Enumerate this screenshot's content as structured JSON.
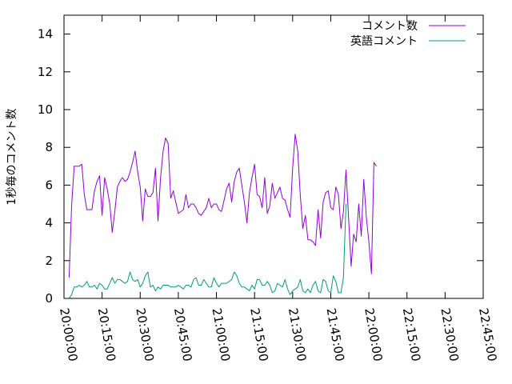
{
  "chart_data": {
    "type": "line",
    "title": "",
    "xlabel": "",
    "ylabel": "1秒毎のコメント数",
    "ylim": [
      0,
      15
    ],
    "yticks": [
      0,
      2,
      4,
      6,
      8,
      10,
      12,
      14
    ],
    "xlim": [
      "20:00:00",
      "22:45:00"
    ],
    "xticks": [
      "20:00:00",
      "20:15:00",
      "20:30:00",
      "20:45:00",
      "21:00:00",
      "21:15:00",
      "21:30:00",
      "21:45:00",
      "22:00:00",
      "22:15:00",
      "22:30:00",
      "22:45:00"
    ],
    "legend_position": "top-right",
    "grid": false,
    "series": [
      {
        "name": "コメント数",
        "color": "#9400d3",
        "points": [
          [
            "20:02:00",
            1.1
          ],
          [
            "20:03:00",
            4.9
          ],
          [
            "20:04:00",
            7.0
          ],
          [
            "20:05:00",
            7.0
          ],
          [
            "20:06:00",
            7.0
          ],
          [
            "20:07:00",
            7.1
          ],
          [
            "20:08:00",
            5.5
          ],
          [
            "20:09:00",
            4.7
          ],
          [
            "20:10:00",
            4.7
          ],
          [
            "20:11:00",
            4.7
          ],
          [
            "20:12:00",
            5.7
          ],
          [
            "20:13:00",
            6.2
          ],
          [
            "20:14:00",
            6.5
          ],
          [
            "20:15:00",
            4.4
          ],
          [
            "20:16:00",
            6.4
          ],
          [
            "20:17:00",
            5.8
          ],
          [
            "20:18:00",
            5.0
          ],
          [
            "20:19:00",
            3.5
          ],
          [
            "20:20:00",
            4.6
          ],
          [
            "20:21:00",
            5.9
          ],
          [
            "20:22:00",
            6.2
          ],
          [
            "20:23:00",
            6.4
          ],
          [
            "20:24:00",
            6.2
          ],
          [
            "20:25:00",
            6.3
          ],
          [
            "20:26:00",
            6.7
          ],
          [
            "20:27:00",
            7.2
          ],
          [
            "20:28:00",
            7.8
          ],
          [
            "20:29:00",
            6.7
          ],
          [
            "20:30:00",
            5.9
          ],
          [
            "20:31:00",
            4.1
          ],
          [
            "20:32:00",
            5.8
          ],
          [
            "20:33:00",
            5.4
          ],
          [
            "20:34:00",
            5.4
          ],
          [
            "20:35:00",
            5.6
          ],
          [
            "20:36:00",
            6.9
          ],
          [
            "20:37:00",
            4.1
          ],
          [
            "20:38:00",
            6.4
          ],
          [
            "20:39:00",
            7.8
          ],
          [
            "20:40:00",
            8.5
          ],
          [
            "20:41:00",
            8.2
          ],
          [
            "20:42:00",
            5.3
          ],
          [
            "20:43:00",
            5.7
          ],
          [
            "20:44:00",
            5.1
          ],
          [
            "20:45:00",
            4.5
          ],
          [
            "20:46:00",
            4.6
          ],
          [
            "20:47:00",
            4.7
          ],
          [
            "20:48:00",
            5.5
          ],
          [
            "20:49:00",
            4.8
          ],
          [
            "20:50:00",
            5.0
          ],
          [
            "20:51:00",
            5.0
          ],
          [
            "20:52:00",
            4.8
          ],
          [
            "20:53:00",
            4.5
          ],
          [
            "20:54:00",
            4.4
          ],
          [
            "20:55:00",
            4.6
          ],
          [
            "20:56:00",
            4.8
          ],
          [
            "20:57:00",
            5.3
          ],
          [
            "20:58:00",
            4.8
          ],
          [
            "20:59:00",
            5.0
          ],
          [
            "21:00:00",
            5.0
          ],
          [
            "21:01:00",
            4.7
          ],
          [
            "21:02:00",
            4.6
          ],
          [
            "21:03:00",
            5.2
          ],
          [
            "21:04:00",
            5.8
          ],
          [
            "21:05:00",
            6.1
          ],
          [
            "21:06:00",
            5.1
          ],
          [
            "21:07:00",
            6.2
          ],
          [
            "21:08:00",
            6.7
          ],
          [
            "21:09:00",
            6.9
          ],
          [
            "21:10:00",
            6.0
          ],
          [
            "21:11:00",
            5.1
          ],
          [
            "21:12:00",
            4.0
          ],
          [
            "21:13:00",
            5.6
          ],
          [
            "21:14:00",
            6.4
          ],
          [
            "21:15:00",
            7.1
          ],
          [
            "21:16:00",
            5.5
          ],
          [
            "21:17:00",
            5.4
          ],
          [
            "21:18:00",
            4.8
          ],
          [
            "21:19:00",
            6.4
          ],
          [
            "21:20:00",
            4.5
          ],
          [
            "21:21:00",
            4.9
          ],
          [
            "21:22:00",
            6.1
          ],
          [
            "21:23:00",
            5.3
          ],
          [
            "21:24:00",
            5.6
          ],
          [
            "21:25:00",
            5.9
          ],
          [
            "21:26:00",
            5.3
          ],
          [
            "21:27:00",
            5.2
          ],
          [
            "21:28:00",
            4.7
          ],
          [
            "21:29:00",
            4.3
          ],
          [
            "21:30:00",
            6.9
          ],
          [
            "21:31:00",
            8.7
          ],
          [
            "21:32:00",
            7.8
          ],
          [
            "21:33:00",
            5.5
          ],
          [
            "21:34:00",
            3.7
          ],
          [
            "21:35:00",
            4.4
          ],
          [
            "21:36:00",
            3.1
          ],
          [
            "21:37:00",
            3.1
          ],
          [
            "21:38:00",
            3.0
          ],
          [
            "21:39:00",
            2.8
          ],
          [
            "21:40:00",
            4.7
          ],
          [
            "21:41:00",
            3.2
          ],
          [
            "21:42:00",
            5.1
          ],
          [
            "21:43:00",
            5.6
          ],
          [
            "21:44:00",
            5.7
          ],
          [
            "21:45:00",
            4.8
          ],
          [
            "21:46:00",
            4.7
          ],
          [
            "21:47:00",
            5.9
          ],
          [
            "21:48:00",
            5.5
          ],
          [
            "21:49:00",
            3.7
          ],
          [
            "21:50:00",
            4.6
          ],
          [
            "21:51:00",
            6.8
          ],
          [
            "21:52:00",
            4.3
          ],
          [
            "21:53:00",
            1.7
          ],
          [
            "21:54:00",
            3.4
          ],
          [
            "21:55:00",
            3.0
          ],
          [
            "21:56:00",
            5.0
          ],
          [
            "21:57:00",
            3.3
          ],
          [
            "21:58:00",
            6.3
          ],
          [
            "21:59:00",
            4.3
          ],
          [
            "22:00:00",
            3.0
          ],
          [
            "22:01:00",
            1.3
          ],
          [
            "22:02:00",
            7.2
          ],
          [
            "22:03:00",
            7.0
          ]
        ]
      },
      {
        "name": "英語コメント",
        "color": "#009e73",
        "points": [
          [
            "20:02:00",
            0.0
          ],
          [
            "20:03:00",
            0.2
          ],
          [
            "20:04:00",
            0.6
          ],
          [
            "20:05:00",
            0.6
          ],
          [
            "20:06:00",
            0.7
          ],
          [
            "20:07:00",
            0.6
          ],
          [
            "20:08:00",
            0.7
          ],
          [
            "20:09:00",
            0.9
          ],
          [
            "20:10:00",
            0.6
          ],
          [
            "20:11:00",
            0.6
          ],
          [
            "20:12:00",
            0.7
          ],
          [
            "20:13:00",
            0.5
          ],
          [
            "20:14:00",
            0.8
          ],
          [
            "20:15:00",
            0.7
          ],
          [
            "20:16:00",
            0.5
          ],
          [
            "20:17:00",
            0.5
          ],
          [
            "20:18:00",
            0.8
          ],
          [
            "20:19:00",
            1.1
          ],
          [
            "20:20:00",
            0.8
          ],
          [
            "20:21:00",
            1.0
          ],
          [
            "20:22:00",
            1.0
          ],
          [
            "20:23:00",
            0.9
          ],
          [
            "20:24:00",
            0.8
          ],
          [
            "20:25:00",
            0.9
          ],
          [
            "20:26:00",
            1.4
          ],
          [
            "20:27:00",
            1.0
          ],
          [
            "20:28:00",
            0.9
          ],
          [
            "20:29:00",
            1.0
          ],
          [
            "20:30:00",
            0.6
          ],
          [
            "20:31:00",
            0.8
          ],
          [
            "20:32:00",
            1.2
          ],
          [
            "20:33:00",
            1.4
          ],
          [
            "20:34:00",
            0.6
          ],
          [
            "20:35:00",
            0.7
          ],
          [
            "20:36:00",
            0.4
          ],
          [
            "20:37:00",
            0.6
          ],
          [
            "20:38:00",
            0.5
          ],
          [
            "20:39:00",
            0.7
          ],
          [
            "20:40:00",
            0.7
          ],
          [
            "20:41:00",
            0.7
          ],
          [
            "20:42:00",
            0.6
          ],
          [
            "20:43:00",
            0.6
          ],
          [
            "20:44:00",
            0.6
          ],
          [
            "20:45:00",
            0.7
          ],
          [
            "20:46:00",
            0.6
          ],
          [
            "20:47:00",
            0.5
          ],
          [
            "20:48:00",
            0.7
          ],
          [
            "20:49:00",
            0.7
          ],
          [
            "20:50:00",
            0.6
          ],
          [
            "20:51:00",
            1.0
          ],
          [
            "20:52:00",
            1.1
          ],
          [
            "20:53:00",
            0.7
          ],
          [
            "20:54:00",
            0.7
          ],
          [
            "20:55:00",
            1.0
          ],
          [
            "20:56:00",
            0.8
          ],
          [
            "20:57:00",
            0.6
          ],
          [
            "20:58:00",
            0.6
          ],
          [
            "20:59:00",
            1.1
          ],
          [
            "21:00:00",
            0.8
          ],
          [
            "21:01:00",
            0.6
          ],
          [
            "21:02:00",
            0.8
          ],
          [
            "21:03:00",
            0.8
          ],
          [
            "21:04:00",
            0.8
          ],
          [
            "21:05:00",
            0.9
          ],
          [
            "21:06:00",
            1.0
          ],
          [
            "21:07:00",
            1.4
          ],
          [
            "21:08:00",
            1.2
          ],
          [
            "21:09:00",
            0.8
          ],
          [
            "21:10:00",
            0.6
          ],
          [
            "21:11:00",
            0.6
          ],
          [
            "21:12:00",
            0.5
          ],
          [
            "21:13:00",
            0.4
          ],
          [
            "21:14:00",
            0.7
          ],
          [
            "21:15:00",
            0.5
          ],
          [
            "21:16:00",
            1.0
          ],
          [
            "21:17:00",
            1.0
          ],
          [
            "21:18:00",
            0.7
          ],
          [
            "21:19:00",
            0.7
          ],
          [
            "21:20:00",
            0.9
          ],
          [
            "21:21:00",
            0.7
          ],
          [
            "21:22:00",
            0.3
          ],
          [
            "21:23:00",
            0.4
          ],
          [
            "21:24:00",
            0.8
          ],
          [
            "21:25:00",
            0.7
          ],
          [
            "21:26:00",
            0.6
          ],
          [
            "21:27:00",
            1.0
          ],
          [
            "21:28:00",
            0.5
          ],
          [
            "21:29:00",
            0.2
          ],
          [
            "21:30:00",
            0.4
          ],
          [
            "21:31:00",
            0.5
          ],
          [
            "21:32:00",
            0.6
          ],
          [
            "21:33:00",
            1.0
          ],
          [
            "21:34:00",
            0.4
          ],
          [
            "21:35:00",
            0.3
          ],
          [
            "21:36:00",
            0.5
          ],
          [
            "21:37:00",
            0.3
          ],
          [
            "21:38:00",
            0.7
          ],
          [
            "21:39:00",
            0.9
          ],
          [
            "21:40:00",
            0.4
          ],
          [
            "21:41:00",
            0.3
          ],
          [
            "21:42:00",
            1.0
          ],
          [
            "21:43:00",
            0.9
          ],
          [
            "21:44:00",
            0.4
          ],
          [
            "21:45:00",
            0.3
          ],
          [
            "21:46:00",
            1.2
          ],
          [
            "21:47:00",
            0.9
          ],
          [
            "21:48:00",
            0.3
          ],
          [
            "21:49:00",
            0.3
          ],
          [
            "21:50:00",
            1.1
          ],
          [
            "21:51:00",
            5.0
          ]
        ]
      }
    ]
  }
}
